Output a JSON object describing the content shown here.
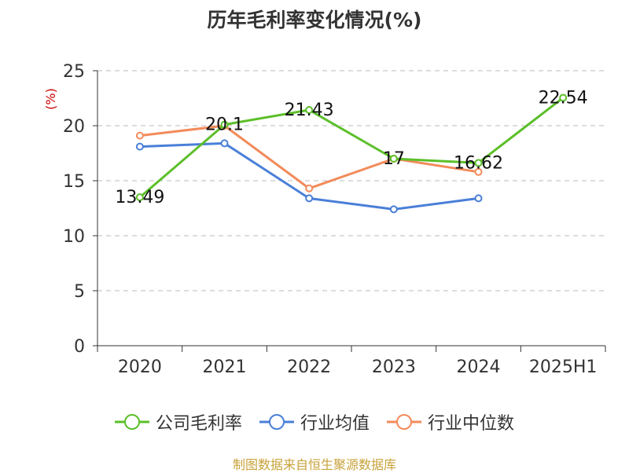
{
  "title": "历年毛利率变化情况(%)",
  "source_note": "制图数据来自恒生聚源数据库",
  "chart_data": {
    "type": "line",
    "title": "历年毛利率变化情况(%)",
    "ylabel": "(%)",
    "xlabel": "",
    "ylim": [
      0,
      25
    ],
    "yticks": [
      0,
      5,
      10,
      15,
      20,
      25
    ],
    "categories": [
      "2020",
      "2021",
      "2022",
      "2023",
      "2024",
      "2025H1"
    ],
    "grid": true,
    "legend_position": "bottom",
    "series": [
      {
        "name": "公司毛利率",
        "color": "#5cbf2a",
        "values": [
          13.49,
          20.1,
          21.43,
          17,
          16.62,
          22.54
        ],
        "labels": [
          "13.49",
          "20.1",
          "21.43",
          "17",
          "16.62",
          "22.54"
        ]
      },
      {
        "name": "行业均值",
        "color": "#4a7fd8",
        "values": [
          18.1,
          18.4,
          13.4,
          12.4,
          13.4,
          null
        ]
      },
      {
        "name": "行业中位数",
        "color": "#f28b5b",
        "values": [
          19.1,
          20.0,
          14.3,
          17.0,
          15.8,
          null
        ]
      }
    ]
  }
}
